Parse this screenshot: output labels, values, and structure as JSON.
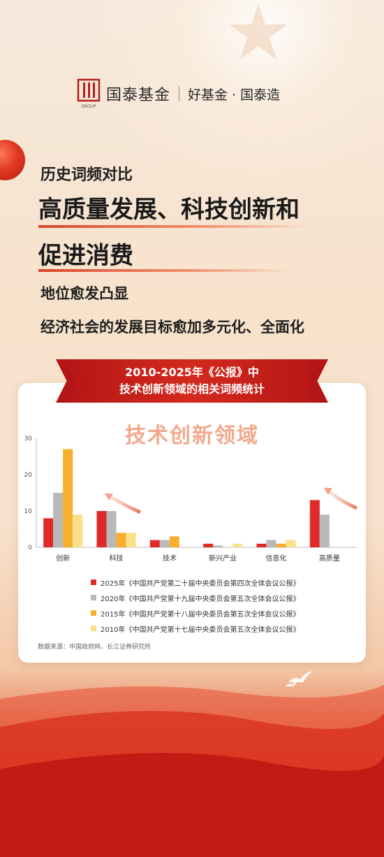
{
  "header": {
    "brand": "国泰基金",
    "slogan": "好基金 · 国泰造",
    "logo_sub": "GROUP"
  },
  "headline": {
    "line1": "历史词频对比",
    "line2": "高质量发展、科技创新和",
    "line3": "促进消费",
    "line4": "地位愈发凸显",
    "line5": "经济社会的发展目标愈加多元化、全面化"
  },
  "banner": {
    "line1": "2010-2025年《公报》中",
    "line2": "技术创新领域的相关词频统计"
  },
  "chart_data": {
    "type": "bar",
    "title": "技术创新领域",
    "categories": [
      "创新",
      "科技",
      "技术",
      "新兴产业",
      "信息化",
      "高质量"
    ],
    "ylim": [
      0,
      30
    ],
    "yticks": [
      "0",
      "10",
      "20",
      "30"
    ],
    "grid": false,
    "legend_position": "bottom",
    "series": [
      {
        "name": "2025年《中国共产党第二十届中央委员会第四次全体会议公报》",
        "color": "#e02a2a",
        "values": [
          8,
          10,
          2,
          1,
          1,
          13
        ]
      },
      {
        "name": "2020年《中国共产党第十九届中央委员会第五次全体会议公报》",
        "color": "#b9b9b9",
        "values": [
          15,
          10,
          2,
          0.5,
          2,
          9
        ]
      },
      {
        "name": "2015年《中国共产党第十八届中央委员会第五次全体会议公报》",
        "color": "#f7b02e",
        "values": [
          27,
          4,
          3,
          0,
          1,
          0
        ]
      },
      {
        "name": "2010年《中国共产党第十七届中央委员会第五次全体会议公报》",
        "color": "#fbe08a",
        "values": [
          9,
          4,
          0,
          1,
          2,
          0
        ]
      }
    ]
  },
  "source": "数据来源：中国政府网，长江证券研究所",
  "colors": {
    "accent": "#d42a1e",
    "title_peach": "#f2a98c"
  }
}
